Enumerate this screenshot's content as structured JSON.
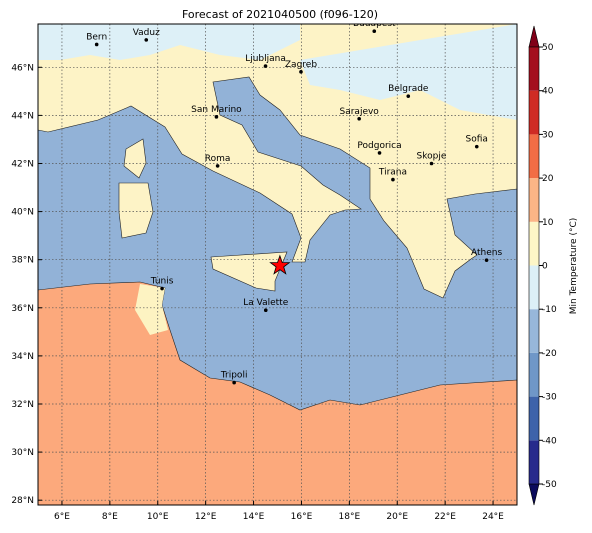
{
  "title": "Forecast of 2021040500 (f096-120)",
  "map": {
    "xlim": [
      5,
      25
    ],
    "ylim": [
      27.8,
      47.8
    ],
    "xticks": [
      {
        "value": 6,
        "label": "6°E"
      },
      {
        "value": 8,
        "label": "8°E"
      },
      {
        "value": 10,
        "label": "10°E"
      },
      {
        "value": 12,
        "label": "12°E"
      },
      {
        "value": 14,
        "label": "14°E"
      },
      {
        "value": 16,
        "label": "16°E"
      },
      {
        "value": 18,
        "label": "18°E"
      },
      {
        "value": 20,
        "label": "20°E"
      },
      {
        "value": 22,
        "label": "22°E"
      },
      {
        "value": 24,
        "label": "24°E"
      }
    ],
    "yticks": [
      {
        "value": 28,
        "label": "28°N"
      },
      {
        "value": 30,
        "label": "30°N"
      },
      {
        "value": 32,
        "label": "32°N"
      },
      {
        "value": 34,
        "label": "34°N"
      },
      {
        "value": 36,
        "label": "36°N"
      },
      {
        "value": 38,
        "label": "38°N"
      },
      {
        "value": 40,
        "label": "40°N"
      },
      {
        "value": 42,
        "label": "42°N"
      },
      {
        "value": 44,
        "label": "44°N"
      },
      {
        "value": 46,
        "label": "46°N"
      }
    ],
    "grid": true,
    "cities": [
      {
        "name": "Bern",
        "lon": 7.45,
        "lat": 46.95
      },
      {
        "name": "Vaduz",
        "lon": 9.52,
        "lat": 47.14
      },
      {
        "name": "Budapest",
        "lon": 19.04,
        "lat": 47.5
      },
      {
        "name": "Ljubljana",
        "lon": 14.5,
        "lat": 46.05
      },
      {
        "name": "Zagreb",
        "lon": 15.98,
        "lat": 45.81
      },
      {
        "name": "Belgrade",
        "lon": 20.46,
        "lat": 44.8
      },
      {
        "name": "San Marino",
        "lon": 12.45,
        "lat": 43.94
      },
      {
        "name": "Sarajevo",
        "lon": 18.41,
        "lat": 43.86
      },
      {
        "name": "Roma",
        "lon": 12.5,
        "lat": 41.9
      },
      {
        "name": "Podgorica",
        "lon": 19.26,
        "lat": 42.44
      },
      {
        "name": "Skopje",
        "lon": 21.43,
        "lat": 42.0
      },
      {
        "name": "Sofia",
        "lon": 23.32,
        "lat": 42.7
      },
      {
        "name": "Tirana",
        "lon": 19.82,
        "lat": 41.33
      },
      {
        "name": "Athens",
        "lon": 23.73,
        "lat": 37.98
      },
      {
        "name": "Tunis",
        "lon": 10.18,
        "lat": 36.8
      },
      {
        "name": "La Valette",
        "lon": 14.51,
        "lat": 35.9
      },
      {
        "name": "Tripoli",
        "lon": 13.19,
        "lat": 32.89
      }
    ],
    "marker": {
      "lon": 15.1,
      "lat": 37.75,
      "color": "#ff0000"
    }
  },
  "colorbar": {
    "label": "Min Temperature (°C)",
    "lim": [
      -50,
      50
    ],
    "ticks": [
      -50,
      -40,
      -30,
      -20,
      -10,
      0,
      10,
      20,
      30,
      40,
      50
    ],
    "colors": [
      "#272a8c",
      "#3e63aa",
      "#6f97c8",
      "#97b7da",
      "#dcf0f7",
      "#fdf6c7",
      "#fcb586",
      "#f26d45",
      "#cf2b24",
      "#a40e1e"
    ]
  }
}
